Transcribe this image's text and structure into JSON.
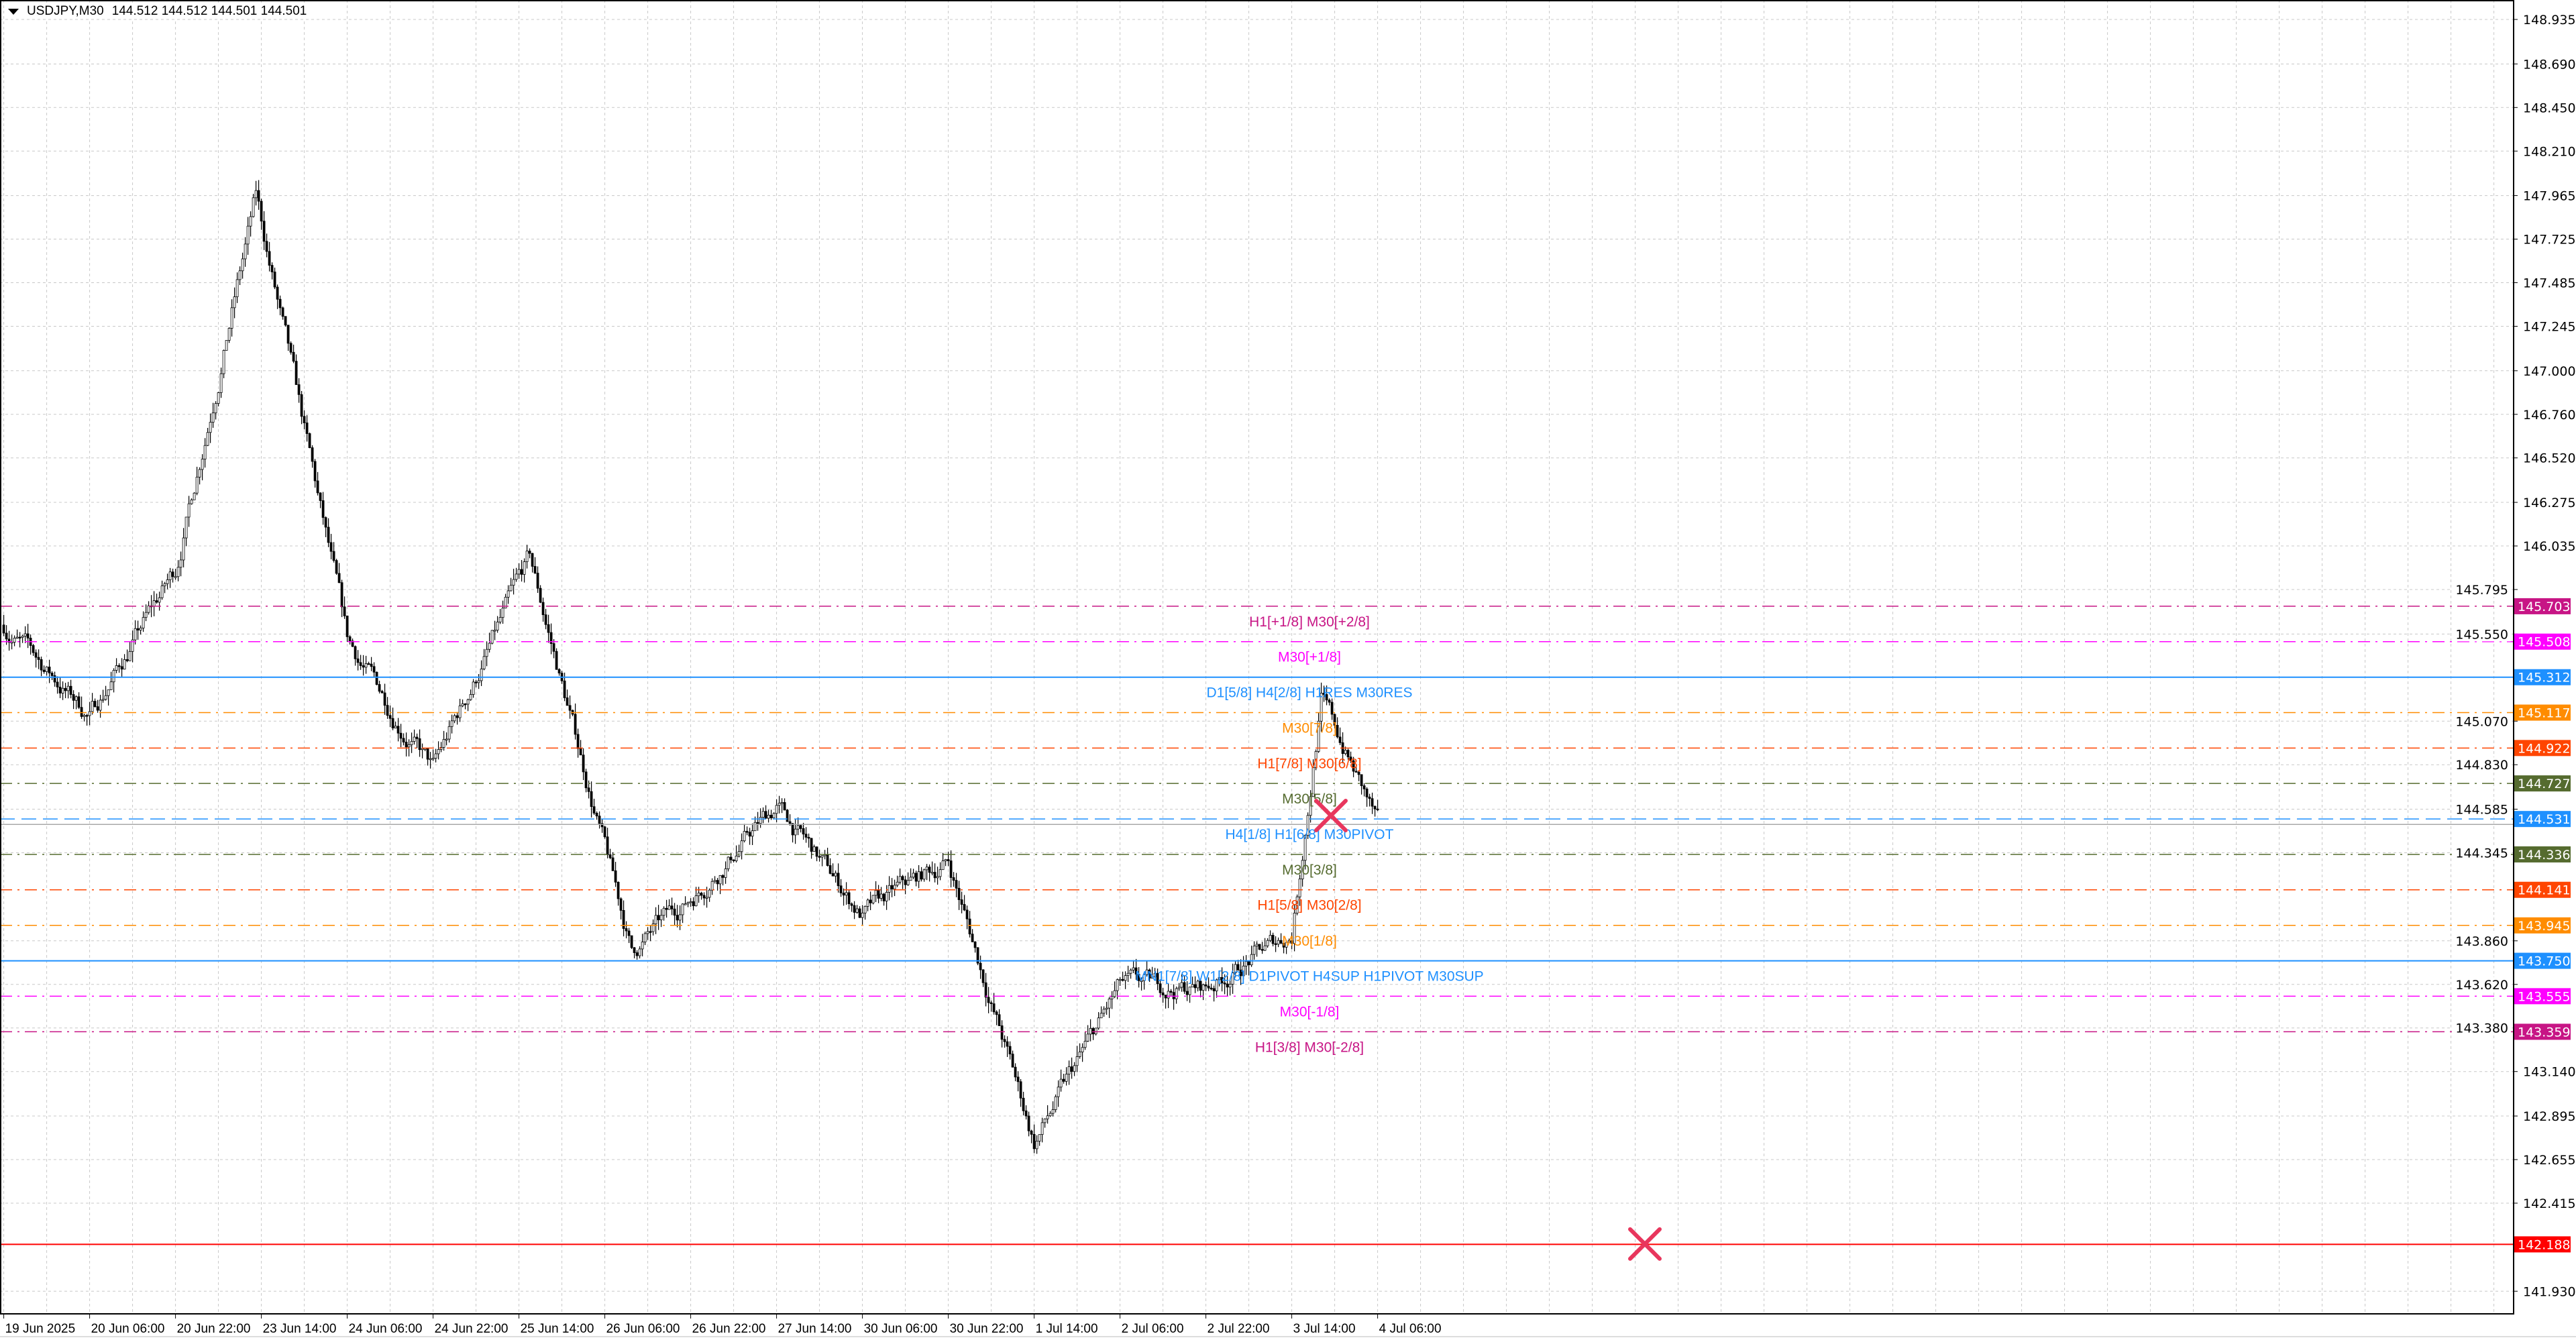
{
  "header": {
    "symbol": "USDJPY,M30",
    "ohlc": "144.512 144.512 144.501 144.501",
    "menu_icon": "triangle-down-icon"
  },
  "chart_data": {
    "type": "candlestick",
    "symbol": "USDJPY",
    "timeframe": "M30",
    "ylim": [
      141.8,
      149.0
    ],
    "grid": true,
    "y_ticks": [
      "148.935",
      "148.690",
      "148.450",
      "148.210",
      "147.965",
      "147.725",
      "147.485",
      "147.245",
      "147.000",
      "146.760",
      "146.520",
      "146.275",
      "146.035",
      "145.795",
      "145.550",
      "145.070",
      "144.830",
      "144.585",
      "144.345",
      "143.860",
      "143.620",
      "143.380",
      "143.140",
      "142.895",
      "142.655",
      "142.415",
      "141.930"
    ],
    "x_ticks": [
      "19 Jun 2025",
      "20 Jun 06:00",
      "20 Jun 22:00",
      "23 Jun 14:00",
      "24 Jun 06:00",
      "24 Jun 22:00",
      "25 Jun 14:00",
      "26 Jun 06:00",
      "26 Jun 22:00",
      "27 Jun 14:00",
      "30 Jun 06:00",
      "30 Jun 22:00",
      "1 Jul 14:00",
      "2 Jul 06:00",
      "2 Jul 22:00",
      "3 Jul 14:00",
      "4 Jul 06:00"
    ],
    "price_path": [
      {
        "time": "19 Jun 14:00",
        "close": 145.6
      },
      {
        "time": "20 Jun 06:00",
        "close": 145.1
      },
      {
        "time": "20 Jun 22:00",
        "close": 145.9
      },
      {
        "time": "23 Jun 13:00",
        "close": 147.95
      },
      {
        "time": "24 Jun 06:00",
        "close": 145.5
      },
      {
        "time": "24 Jun 22:00",
        "close": 144.8
      },
      {
        "time": "25 Jun 16:00",
        "close": 145.95
      },
      {
        "time": "26 Jun 11:00",
        "close": 143.8
      },
      {
        "time": "26 Jun 22:00",
        "close": 144.1
      },
      {
        "time": "27 Jun 14:00",
        "close": 144.6
      },
      {
        "time": "30 Jun 06:00",
        "close": 144.0
      },
      {
        "time": "30 Jun 22:00",
        "close": 144.3
      },
      {
        "time": "1 Jul 14:00",
        "close": 142.75
      },
      {
        "time": "2 Jul 06:00",
        "close": 143.6
      },
      {
        "time": "2 Jul 22:00",
        "close": 143.6
      },
      {
        "time": "3 Jul 14:00",
        "close": 143.9
      },
      {
        "time": "3 Jul 19:30",
        "close": 145.2
      },
      {
        "time": "4 Jul 06:00",
        "close": 144.5
      }
    ],
    "current_price": 144.501,
    "levels": [
      {
        "price": "145.703",
        "label": "H1[+1/8] M30[+2/8]",
        "color": "#c71585",
        "style": "dashdot"
      },
      {
        "price": "145.508",
        "label": "M30[+1/8]",
        "color": "#ff00ff",
        "style": "dashdot"
      },
      {
        "price": "145.312",
        "label": "D1[5/8] H4[2/8] H1RES M30RES",
        "color": "#1e90ff",
        "style": "solid"
      },
      {
        "price": "145.117",
        "label": "M30[7/8]",
        "color": "#ff8c00",
        "style": "dashdot"
      },
      {
        "price": "144.922",
        "label": "H1[7/8] M30[6/8]",
        "color": "#ff4500",
        "style": "dashdot"
      },
      {
        "price": "144.727",
        "label": "M30[5/8]",
        "color": "#556b2f",
        "style": "dashdot"
      },
      {
        "price": "144.531",
        "label": "H4[1/8] H1[6/8] M30PIVOT",
        "color": "#1e90ff",
        "style": "dashed"
      },
      {
        "price": "144.336",
        "label": "M30[3/8]",
        "color": "#556b2f",
        "style": "dashdot"
      },
      {
        "price": "144.141",
        "label": "H1[5/8] M30[2/8]",
        "color": "#ff4500",
        "style": "dashdot"
      },
      {
        "price": "143.945",
        "label": "M30[1/8]",
        "color": "#ff8c00",
        "style": "dashdot"
      },
      {
        "price": "143.750",
        "label": "MN1[7/8] W1[2/8] D1PIVOT H4SUP H1PIVOT M30SUP",
        "color": "#1e90ff",
        "style": "solid"
      },
      {
        "price": "143.555",
        "label": "M30[-1/8]",
        "color": "#ff00ff",
        "style": "dashdot"
      },
      {
        "price": "143.359",
        "label": "H1[3/8] M30[-2/8]",
        "color": "#c71585",
        "style": "dashdot"
      },
      {
        "price": "142.188",
        "label": "",
        "color": "#ff0000",
        "style": "solid"
      }
    ],
    "markers": [
      {
        "type": "x-cross",
        "price": 144.55,
        "color": "#e8365d"
      },
      {
        "type": "x-cross",
        "price": 142.19,
        "color": "#e8365d"
      }
    ]
  }
}
